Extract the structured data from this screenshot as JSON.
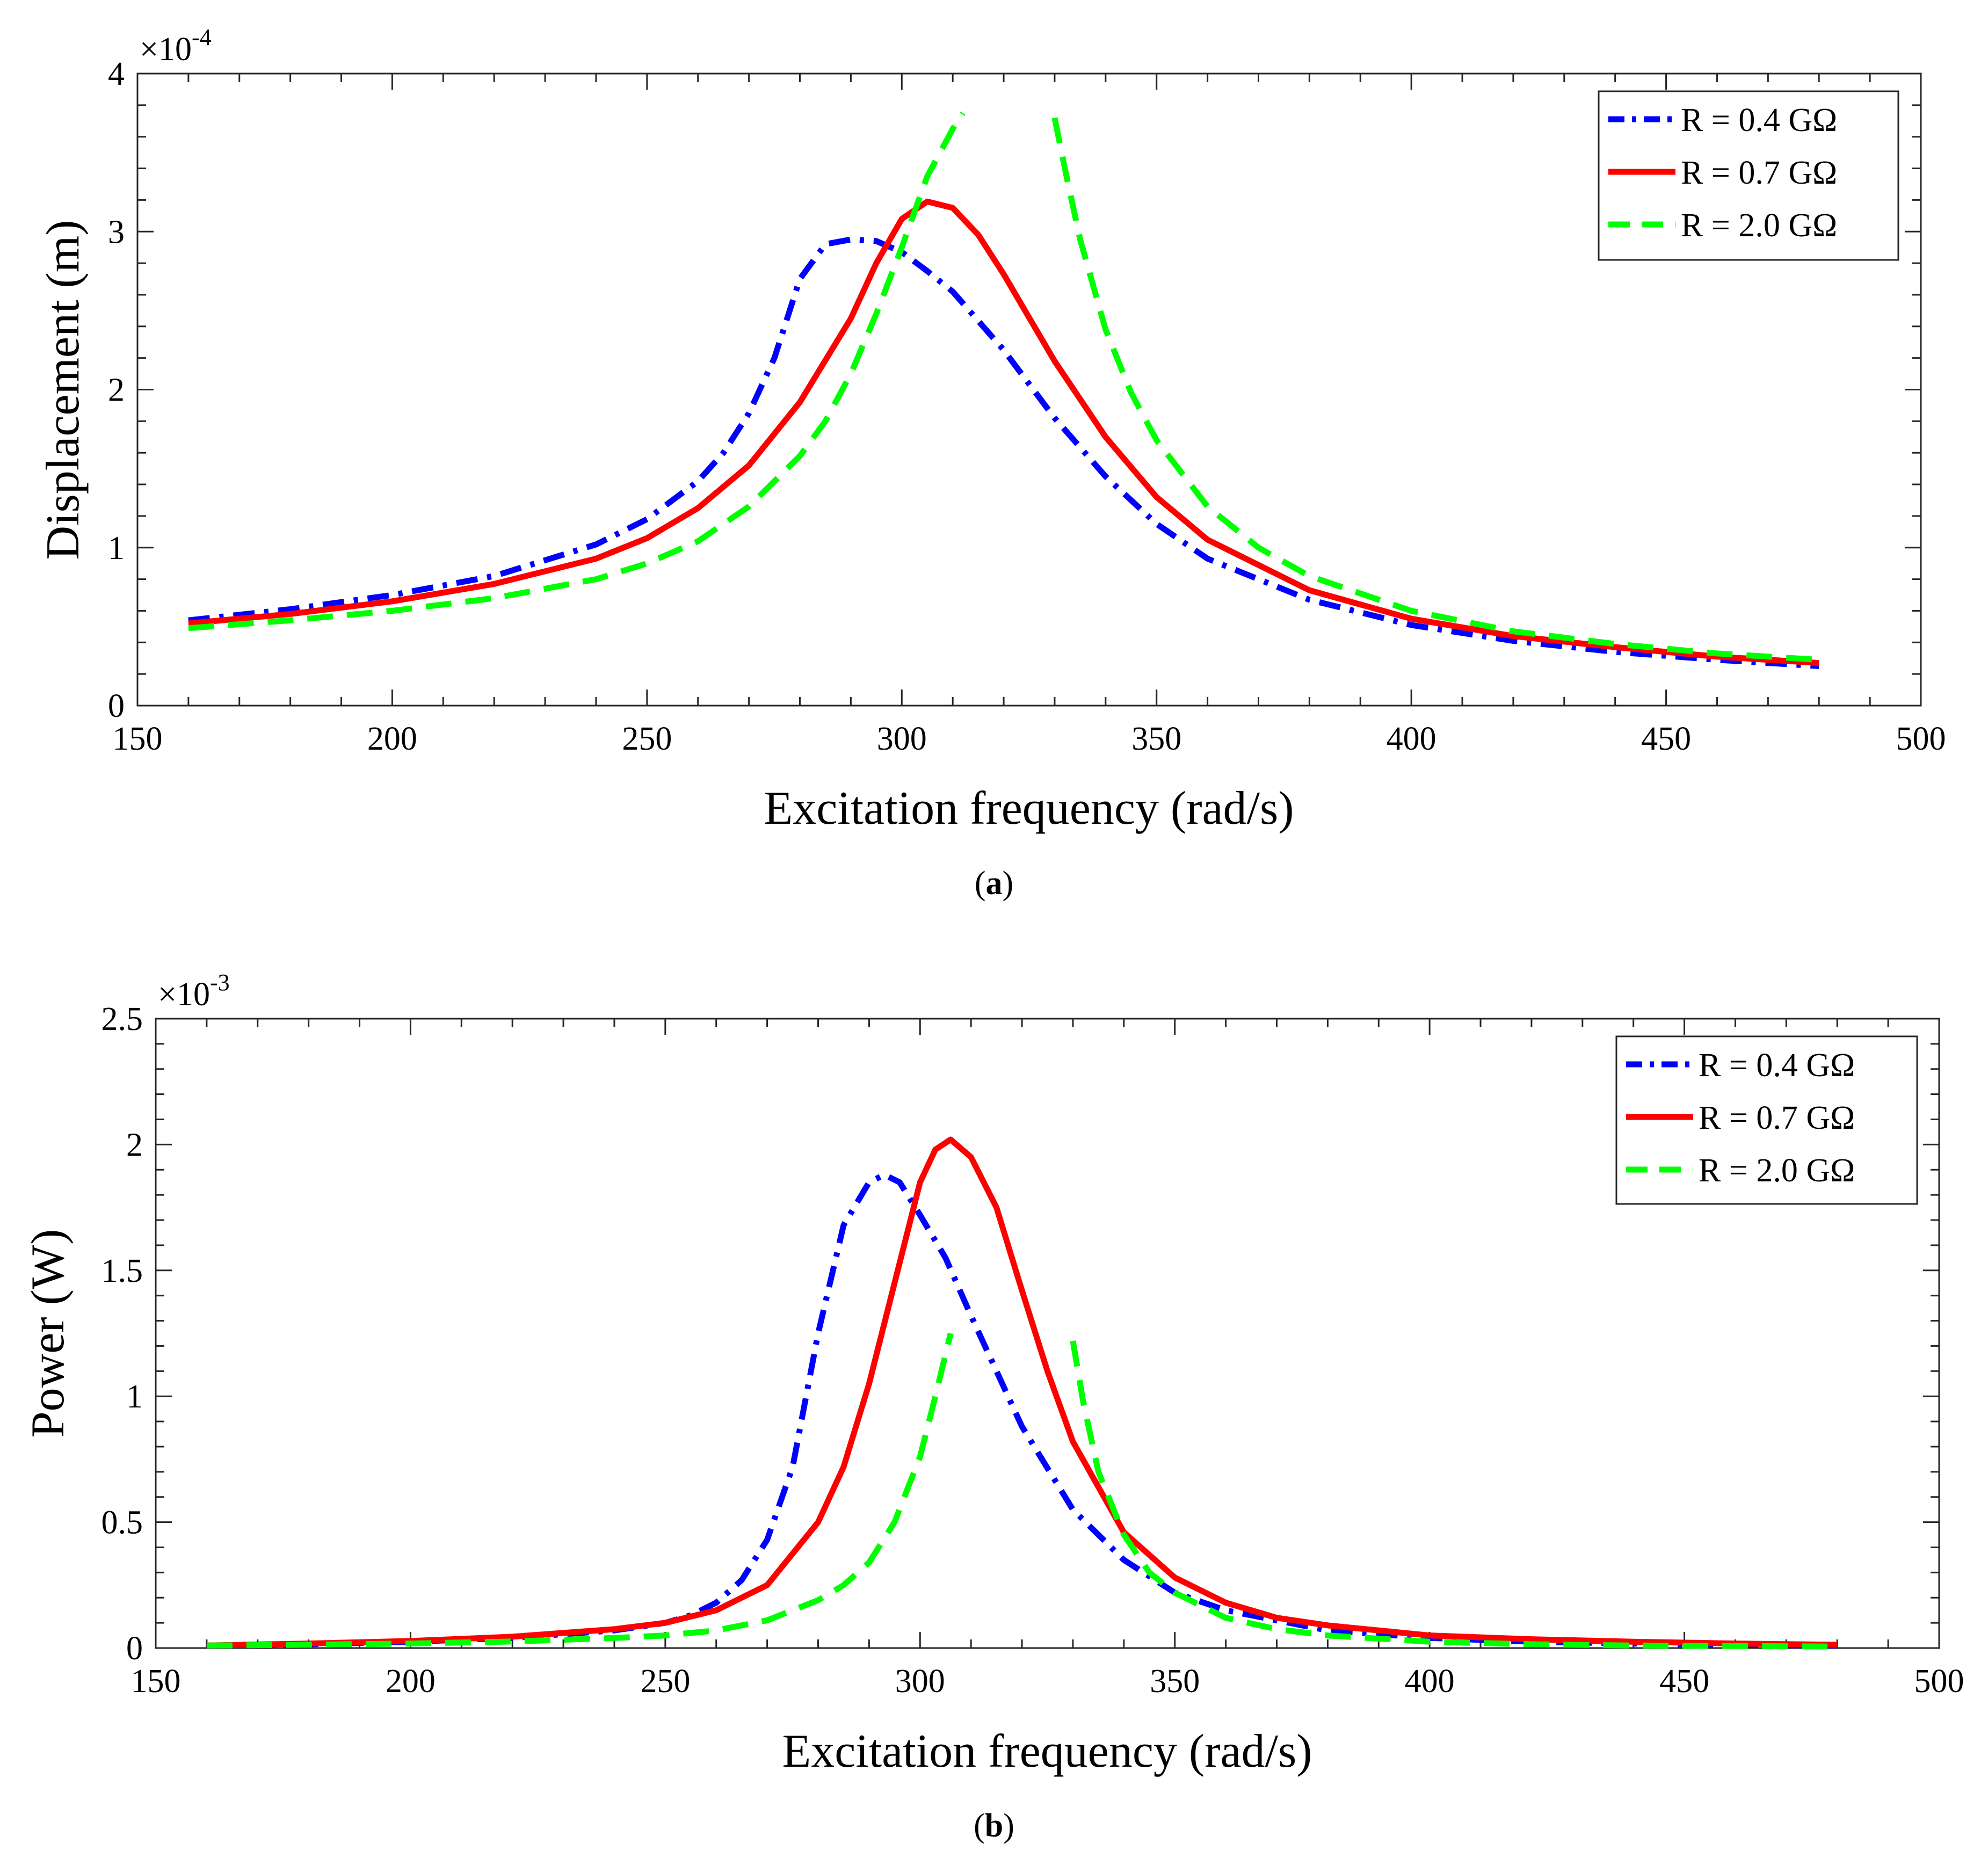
{
  "chart_data": [
    {
      "type": "line",
      "panel_label": "a",
      "xlabel": "Excitation frequency (rad/s)",
      "ylabel": "Displacement (m)",
      "exponent_base": "×10",
      "exponent_power": "-4",
      "xlim": [
        150,
        500
      ],
      "ylim": [
        0,
        4
      ],
      "xticks": [
        150,
        200,
        250,
        300,
        350,
        400,
        450,
        500
      ],
      "yticks": [
        0,
        1,
        2,
        3,
        4
      ],
      "legend_position": "top-right",
      "series": [
        {
          "name": "R = 0.4 GΩ",
          "color": "#0000FF",
          "style": "dashdot",
          "x": [
            160,
            180,
            200,
            220,
            240,
            250,
            260,
            265,
            270,
            275,
            280,
            285,
            290,
            295,
            300,
            305,
            310,
            320,
            330,
            340,
            350,
            360,
            380,
            400,
            420,
            440,
            460,
            480
          ],
          "y": [
            0.54,
            0.61,
            0.7,
            0.82,
            1.02,
            1.18,
            1.42,
            1.6,
            1.85,
            2.2,
            2.7,
            2.92,
            2.95,
            2.94,
            2.87,
            2.75,
            2.62,
            2.25,
            1.82,
            1.45,
            1.15,
            0.93,
            0.67,
            0.51,
            0.41,
            0.34,
            0.29,
            0.25
          ]
        },
        {
          "name": "R = 0.7 GΩ",
          "color": "#FF0000",
          "style": "solid",
          "x": [
            160,
            180,
            200,
            220,
            240,
            250,
            260,
            270,
            280,
            290,
            295,
            300,
            305,
            310,
            315,
            320,
            330,
            340,
            350,
            360,
            380,
            400,
            420,
            440,
            460,
            480
          ],
          "y": [
            0.52,
            0.58,
            0.66,
            0.77,
            0.93,
            1.06,
            1.25,
            1.52,
            1.92,
            2.45,
            2.8,
            3.08,
            3.19,
            3.15,
            2.98,
            2.73,
            2.18,
            1.7,
            1.32,
            1.05,
            0.73,
            0.55,
            0.44,
            0.37,
            0.31,
            0.27
          ]
        },
        {
          "name": "R = 2.0 GΩ",
          "color": "#00FF00",
          "style": "dashed",
          "segments": [
            {
              "x": [
                160,
                180,
                200,
                220,
                240,
                250,
                260,
                270,
                280,
                285,
                290,
                295,
                300,
                305,
                310,
                312
              ],
              "y": [
                0.49,
                0.54,
                0.6,
                0.68,
                0.8,
                0.9,
                1.04,
                1.26,
                1.58,
                1.8,
                2.1,
                2.48,
                2.9,
                3.35,
                3.65,
                3.75
              ]
            },
            {
              "x": [
                330,
                332,
                335,
                340,
                345,
                350,
                360,
                370,
                380,
                400,
                420,
                440,
                460,
                480
              ],
              "y": [
                3.72,
                3.4,
                2.95,
                2.38,
                1.98,
                1.68,
                1.26,
                1.0,
                0.82,
                0.6,
                0.47,
                0.39,
                0.33,
                0.29
              ]
            }
          ]
        }
      ]
    },
    {
      "type": "line",
      "panel_label": "b",
      "xlabel": "Excitation frequency (rad/s)",
      "ylabel": "Power (W)",
      "exponent_base": "×10",
      "exponent_power": "-3",
      "xlim": [
        150,
        500
      ],
      "ylim": [
        0,
        2.5
      ],
      "xticks": [
        150,
        200,
        250,
        300,
        350,
        400,
        450,
        500
      ],
      "yticks": [
        0,
        0.5,
        1,
        1.5,
        2,
        2.5
      ],
      "legend_position": "top-right",
      "series": [
        {
          "name": "R = 0.4 GΩ",
          "color": "#0000FF",
          "style": "dashdot",
          "x": [
            160,
            180,
            200,
            220,
            240,
            250,
            255,
            260,
            265,
            270,
            275,
            280,
            285,
            290,
            293,
            296,
            300,
            305,
            310,
            320,
            330,
            340,
            350,
            360,
            380,
            400,
            420,
            440,
            460,
            480
          ],
          "y": [
            0.01,
            0.015,
            0.025,
            0.04,
            0.07,
            0.1,
            0.13,
            0.18,
            0.27,
            0.43,
            0.72,
            1.25,
            1.68,
            1.85,
            1.88,
            1.85,
            1.72,
            1.55,
            1.32,
            0.88,
            0.55,
            0.35,
            0.22,
            0.15,
            0.07,
            0.04,
            0.025,
            0.018,
            0.012,
            0.01
          ]
        },
        {
          "name": "R = 0.7 GΩ",
          "color": "#FF0000",
          "style": "solid",
          "x": [
            160,
            180,
            200,
            220,
            240,
            250,
            260,
            270,
            280,
            285,
            290,
            295,
            300,
            303,
            306,
            310,
            315,
            320,
            325,
            330,
            340,
            350,
            360,
            370,
            380,
            400,
            420,
            440,
            460,
            480
          ],
          "y": [
            0.01,
            0.018,
            0.028,
            0.045,
            0.075,
            0.1,
            0.15,
            0.25,
            0.5,
            0.72,
            1.05,
            1.45,
            1.85,
            1.98,
            2.02,
            1.95,
            1.75,
            1.42,
            1.1,
            0.82,
            0.46,
            0.28,
            0.18,
            0.12,
            0.09,
            0.05,
            0.035,
            0.025,
            0.018,
            0.013
          ]
        },
        {
          "name": "R = 2.0 GΩ",
          "color": "#00FF00",
          "style": "dashed",
          "segments": [
            {
              "x": [
                160,
                180,
                200,
                220,
                240,
                250,
                260,
                270,
                280,
                285,
                290,
                295,
                300,
                303,
                306
              ],
              "y": [
                0.01,
                0.013,
                0.018,
                0.026,
                0.04,
                0.05,
                0.07,
                0.11,
                0.19,
                0.25,
                0.34,
                0.5,
                0.76,
                1.0,
                1.25
              ]
            },
            {
              "x": [
                330,
                332,
                335,
                340,
                345,
                350,
                360,
                370,
                380,
                400,
                420,
                440,
                460,
                480
              ],
              "y": [
                1.22,
                0.98,
                0.7,
                0.45,
                0.3,
                0.22,
                0.12,
                0.075,
                0.05,
                0.025,
                0.015,
                0.01,
                0.008,
                0.006
              ]
            }
          ]
        }
      ]
    }
  ]
}
